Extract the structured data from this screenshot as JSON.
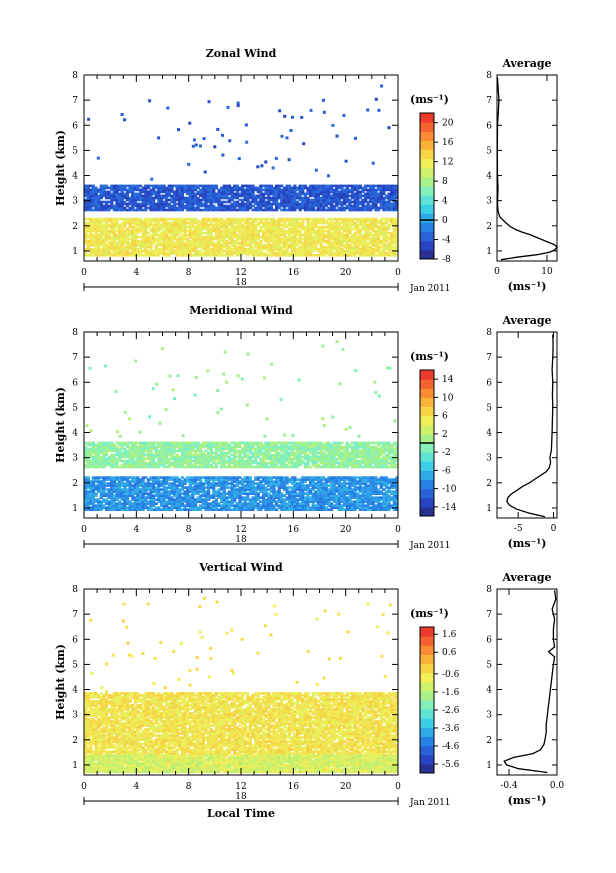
{
  "chart_data": [
    {
      "type": "heatmap",
      "title": "Zonal Wind",
      "ylabel": "Height (km)",
      "xlabel": "",
      "xlim": [
        0,
        24
      ],
      "ylim": [
        0.6,
        8
      ],
      "x_ticks": [
        "0",
        "4",
        "8",
        "12",
        "16",
        "20",
        "0"
      ],
      "y_ticks": [
        "1",
        "2",
        "3",
        "4",
        "5",
        "6",
        "7",
        "8"
      ],
      "date_label": "18",
      "month_label": "Jan 2011",
      "unit_label": "(ms⁻¹)",
      "colorbar": {
        "min": -8,
        "max": 22,
        "ticks": [
          "-8",
          "-4",
          "0",
          "4",
          "8",
          "12",
          "16",
          "20"
        ],
        "zero_line": 0
      },
      "field": {
        "layers": [
          {
            "y0": 2.6,
            "y1": 3.6,
            "value": -4,
            "note_color": "#3a90e0"
          },
          {
            "y0": 0.8,
            "y1": 2.3,
            "value": 12
          }
        ]
      },
      "profile": {
        "title": "Average",
        "xlabel": "(ms⁻¹)",
        "xlim": [
          0,
          12
        ],
        "x_ticks": [
          "0",
          "10"
        ],
        "y_ticks": [
          "1",
          "2",
          "3",
          "4",
          "5",
          "6",
          "7",
          "8"
        ],
        "heights": [
          0.65,
          0.75,
          0.85,
          0.95,
          1.05,
          1.15,
          1.25,
          1.35,
          1.45,
          1.55,
          1.65,
          1.75,
          1.85,
          1.95,
          2.05,
          2.15,
          2.25,
          2.35,
          2.45,
          2.6,
          2.8,
          3.0,
          3.2,
          3.5,
          4.0,
          5.0,
          6.0,
          7.0,
          7.5,
          7.9
        ],
        "values": [
          0.8,
          4,
          8,
          10.5,
          11.6,
          12,
          11.5,
          10.2,
          9,
          7.8,
          6.6,
          5,
          3.8,
          2.8,
          2.2,
          1.6,
          1.1,
          0.6,
          0.4,
          0.2,
          0.12,
          0.1,
          0.15,
          0.2,
          0.1,
          0.05,
          0.1,
          0.4,
          0.2,
          0.1
        ]
      }
    },
    {
      "type": "heatmap",
      "title": "Meridional Wind",
      "ylabel": "Height (km)",
      "xlabel": "",
      "xlim": [
        0,
        24
      ],
      "ylim": [
        0.6,
        8
      ],
      "x_ticks": [
        "0",
        "4",
        "8",
        "12",
        "16",
        "20",
        "0"
      ],
      "y_ticks": [
        "1",
        "2",
        "3",
        "4",
        "5",
        "6",
        "7",
        "8"
      ],
      "date_label": "18",
      "month_label": "Jan 2011",
      "unit_label": "(ms⁻¹)",
      "colorbar": {
        "min": -16,
        "max": 16,
        "ticks": [
          "-14",
          "-10",
          "-6",
          "-2",
          "2",
          "6",
          "10",
          "14"
        ],
        "zero_line": 0
      },
      "field": {
        "layers": [
          {
            "y0": 2.6,
            "y1": 3.6,
            "value": 0
          },
          {
            "y0": 0.9,
            "y1": 2.2,
            "value": -8
          }
        ]
      },
      "profile": {
        "title": "Average",
        "xlabel": "(ms⁻¹)",
        "xlim": [
          -8,
          0.5
        ],
        "x_ticks": [
          "-5",
          "0"
        ],
        "y_ticks": [
          "1",
          "2",
          "3",
          "4",
          "5",
          "6",
          "7",
          "8"
        ],
        "heights": [
          0.65,
          0.8,
          0.95,
          1.1,
          1.25,
          1.4,
          1.55,
          1.7,
          1.85,
          2.0,
          2.15,
          2.3,
          2.45,
          2.6,
          2.8,
          3.0,
          3.3,
          3.6,
          4.0,
          4.5,
          5.0,
          5.5,
          6.0,
          6.5,
          7.0,
          7.5,
          7.9
        ],
        "values": [
          -1.2,
          -3.5,
          -5.2,
          -6.2,
          -6.6,
          -6.5,
          -6,
          -5.2,
          -4.4,
          -3.4,
          -2.6,
          -1.8,
          -1.0,
          -0.6,
          -0.4,
          -0.5,
          -0.3,
          -0.25,
          -0.2,
          -0.15,
          -0.1,
          -0.15,
          -0.1,
          -0.2,
          -0.1,
          -0.05,
          -0.1
        ]
      }
    },
    {
      "type": "heatmap",
      "title": "Vertical Wind",
      "ylabel": "Height (km)",
      "xlabel": "Local Time",
      "xlim": [
        0,
        24
      ],
      "ylim": [
        0.6,
        8
      ],
      "x_ticks": [
        "0",
        "4",
        "8",
        "12",
        "16",
        "20",
        "0"
      ],
      "y_ticks": [
        "1",
        "2",
        "3",
        "4",
        "5",
        "6",
        "7",
        "8"
      ],
      "date_label": "18",
      "month_label": "Jan 2011",
      "unit_label": "(ms⁻¹)",
      "colorbar": {
        "min": -6.1,
        "max": 2.0,
        "ticks": [
          "-5.6",
          "-4.6",
          "-3.6",
          "-2.6",
          "-1.6",
          "-0.6",
          "0.6",
          "1.6"
        ]
      },
      "field": {
        "layers": [
          {
            "y0": 0.7,
            "y1": 3.9,
            "value": -0.6
          },
          {
            "y0": 0.7,
            "y1": 1.4,
            "value": -1.2
          }
        ]
      },
      "profile": {
        "title": "Average",
        "xlabel": "(ms⁻¹)",
        "xlim": [
          -0.5,
          0.0
        ],
        "x_ticks": [
          "-0.4",
          "0.0"
        ],
        "y_ticks": [
          "1",
          "2",
          "3",
          "4",
          "5",
          "6",
          "7",
          "8"
        ],
        "heights": [
          0.7,
          0.85,
          1.0,
          1.15,
          1.3,
          1.45,
          1.6,
          1.8,
          2.0,
          2.3,
          2.6,
          3.0,
          3.4,
          3.8,
          4.2,
          4.6,
          5.0,
          5.3,
          5.5,
          5.7,
          6.0,
          6.4,
          6.8,
          7.2,
          7.6,
          7.95
        ],
        "values": [
          -0.08,
          -0.32,
          -0.42,
          -0.44,
          -0.36,
          -0.2,
          -0.14,
          -0.11,
          -0.1,
          -0.09,
          -0.09,
          -0.08,
          -0.07,
          -0.06,
          -0.05,
          -0.04,
          -0.03,
          -0.02,
          -0.07,
          -0.02,
          -0.03,
          -0.03,
          -0.02,
          -0.04,
          -0.01,
          -0.02
        ]
      }
    }
  ]
}
